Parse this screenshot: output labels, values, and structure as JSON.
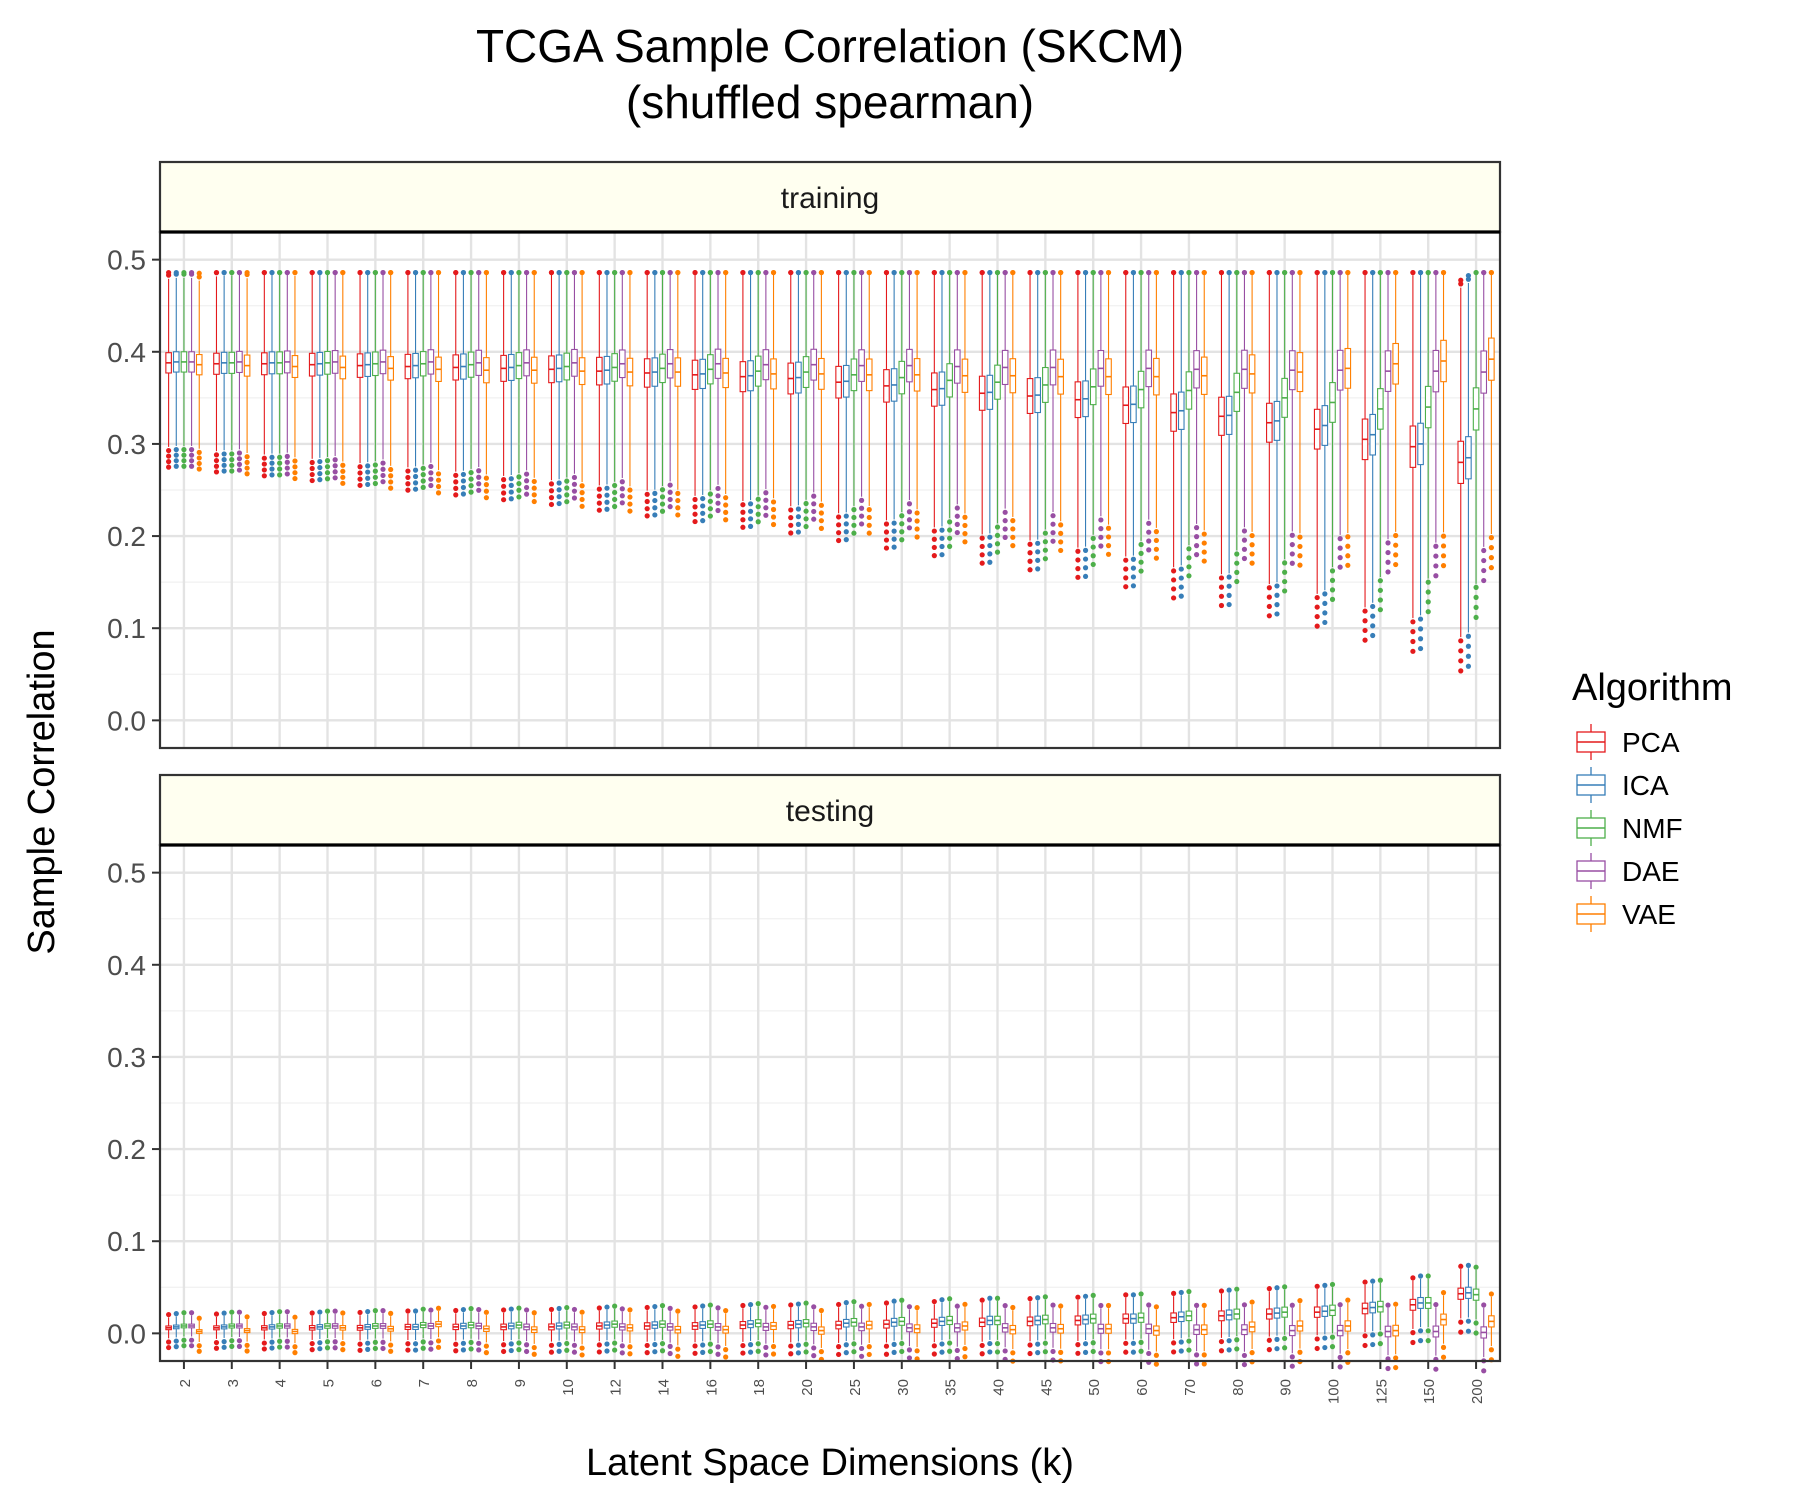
{
  "chart_data": {
    "type": "box",
    "title": "TCGA Sample Correlation (SKCM)",
    "subtitle": "(shuffled spearman)",
    "xlabel": "Latent Space Dimensions (k)",
    "ylabel": "Sample Correlation",
    "ylim": [
      -0.03,
      0.53
    ],
    "yticks": [
      "0.0",
      "0.1",
      "0.2",
      "0.3",
      "0.4",
      "0.5"
    ],
    "grid": true,
    "legend": {
      "title": "Algorithm",
      "position": "right"
    },
    "categories": [
      "2",
      "3",
      "4",
      "5",
      "6",
      "7",
      "8",
      "9",
      "10",
      "12",
      "14",
      "16",
      "18",
      "20",
      "25",
      "30",
      "35",
      "40",
      "45",
      "50",
      "60",
      "70",
      "80",
      "90",
      "100",
      "125",
      "150",
      "200"
    ],
    "series": [
      {
        "name": "PCA",
        "color": "#e41a1c"
      },
      {
        "name": "ICA",
        "color": "#377eb8"
      },
      {
        "name": "NMF",
        "color": "#4daf4a"
      },
      {
        "name": "DAE",
        "color": "#984ea3"
      },
      {
        "name": "VAE",
        "color": "#ff7f00"
      }
    ],
    "panels": [
      {
        "label": "training",
        "medians": {
          "PCA": [
            0.388,
            0.387,
            0.387,
            0.386,
            0.385,
            0.384,
            0.383,
            0.382,
            0.381,
            0.379,
            0.377,
            0.375,
            0.373,
            0.371,
            0.367,
            0.363,
            0.359,
            0.355,
            0.352,
            0.348,
            0.342,
            0.334,
            0.33,
            0.323,
            0.316,
            0.305,
            0.297,
            0.28
          ],
          "ICA": [
            0.389,
            0.388,
            0.388,
            0.387,
            0.386,
            0.385,
            0.384,
            0.383,
            0.382,
            0.38,
            0.378,
            0.376,
            0.374,
            0.372,
            0.368,
            0.364,
            0.36,
            0.356,
            0.353,
            0.349,
            0.343,
            0.336,
            0.331,
            0.325,
            0.32,
            0.31,
            0.3,
            0.285
          ],
          "NMF": [
            0.389,
            0.388,
            0.388,
            0.388,
            0.387,
            0.387,
            0.386,
            0.385,
            0.384,
            0.383,
            0.382,
            0.381,
            0.379,
            0.378,
            0.375,
            0.372,
            0.369,
            0.367,
            0.364,
            0.362,
            0.359,
            0.358,
            0.356,
            0.35,
            0.345,
            0.338,
            0.34,
            0.338
          ],
          "DAE": [
            0.389,
            0.389,
            0.389,
            0.389,
            0.389,
            0.389,
            0.388,
            0.388,
            0.388,
            0.387,
            0.387,
            0.387,
            0.386,
            0.386,
            0.385,
            0.385,
            0.384,
            0.383,
            0.383,
            0.382,
            0.382,
            0.381,
            0.381,
            0.38,
            0.38,
            0.379,
            0.379,
            0.378
          ],
          "VAE": [
            0.386,
            0.385,
            0.384,
            0.383,
            0.382,
            0.381,
            0.38,
            0.38,
            0.379,
            0.378,
            0.378,
            0.377,
            0.376,
            0.376,
            0.375,
            0.375,
            0.374,
            0.374,
            0.373,
            0.373,
            0.373,
            0.374,
            0.376,
            0.378,
            0.382,
            0.387,
            0.39,
            0.392
          ]
        }
      },
      {
        "label": "testing",
        "medians": {
          "PCA": [
            0.006,
            0.006,
            0.006,
            0.006,
            0.006,
            0.007,
            0.007,
            0.007,
            0.007,
            0.008,
            0.008,
            0.008,
            0.009,
            0.009,
            0.009,
            0.01,
            0.011,
            0.012,
            0.013,
            0.014,
            0.016,
            0.017,
            0.019,
            0.021,
            0.023,
            0.027,
            0.031,
            0.043
          ],
          "ICA": [
            0.007,
            0.007,
            0.007,
            0.007,
            0.007,
            0.007,
            0.008,
            0.008,
            0.008,
            0.009,
            0.009,
            0.009,
            0.01,
            0.01,
            0.011,
            0.012,
            0.013,
            0.014,
            0.014,
            0.015,
            0.016,
            0.018,
            0.02,
            0.022,
            0.024,
            0.028,
            0.033,
            0.044
          ],
          "NMF": [
            0.008,
            0.008,
            0.008,
            0.008,
            0.008,
            0.009,
            0.009,
            0.009,
            0.009,
            0.01,
            0.01,
            0.01,
            0.011,
            0.011,
            0.012,
            0.013,
            0.014,
            0.014,
            0.015,
            0.016,
            0.017,
            0.019,
            0.021,
            0.023,
            0.025,
            0.029,
            0.033,
            0.042
          ],
          "DAE": [
            0.008,
            0.008,
            0.008,
            0.008,
            0.008,
            0.008,
            0.008,
            0.007,
            0.007,
            0.007,
            0.007,
            0.007,
            0.007,
            0.007,
            0.007,
            0.006,
            0.006,
            0.006,
            0.006,
            0.005,
            0.005,
            0.004,
            0.004,
            0.003,
            0.003,
            0.002,
            0.002,
            0.001
          ],
          "VAE": [
            0.002,
            0.003,
            0.002,
            0.006,
            0.005,
            0.01,
            0.005,
            0.004,
            0.004,
            0.006,
            0.004,
            0.004,
            0.008,
            0.003,
            0.009,
            0.005,
            0.008,
            0.004,
            0.005,
            0.005,
            0.003,
            0.004,
            0.007,
            0.008,
            0.008,
            0.003,
            0.015,
            0.013
          ]
        }
      }
    ]
  }
}
